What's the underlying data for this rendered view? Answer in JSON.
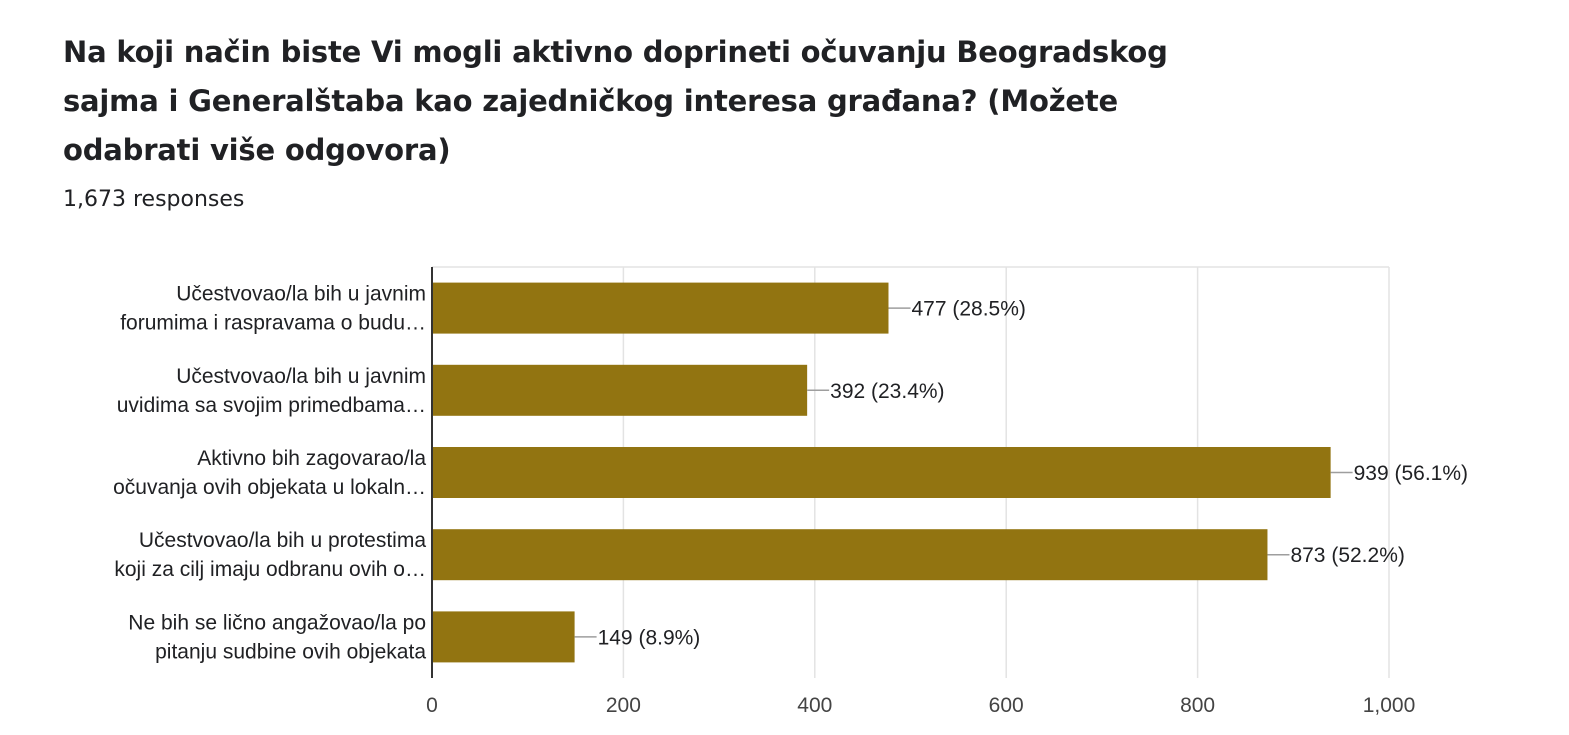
{
  "question": {
    "title": "Na koji način biste Vi mogli aktivno doprineti očuvanju Beogradskog sajma i Generalštaba kao zajedničkog interesa građana? (Možete odabrati više odgovora)",
    "responses": "1,673 responses"
  },
  "chart_data": {
    "type": "bar",
    "orientation": "horizontal",
    "bar_color": "#927411",
    "categories": [
      [
        "Učestvovao/la bih u javnim",
        "forumima i raspravama o budu…"
      ],
      [
        "Učestvovao/la bih u javnim",
        "uvidima sa svojim primedbama…"
      ],
      [
        "Aktivno bih zagovarao/la",
        "očuvanja ovih objekata u lokaln…"
      ],
      [
        "Učestvovao/la bih u protestima",
        "koji za cilj imaju odbranu ovih o…"
      ],
      [
        "Ne bih se lično angažovao/la po",
        "pitanju sudbine ovih objekata"
      ]
    ],
    "values": [
      477,
      392,
      939,
      873,
      149
    ],
    "data_labels": [
      "477 (28.5%)",
      "392 (23.4%)",
      "939 (56.1%)",
      "873 (52.2%)",
      "149 (8.9%)"
    ],
    "xlim": [
      0,
      1000
    ],
    "ticks": [
      0,
      200,
      400,
      600,
      800,
      1000
    ],
    "tick_labels": [
      "0",
      "200",
      "400",
      "600",
      "800",
      "1,000"
    ],
    "grid": true
  }
}
